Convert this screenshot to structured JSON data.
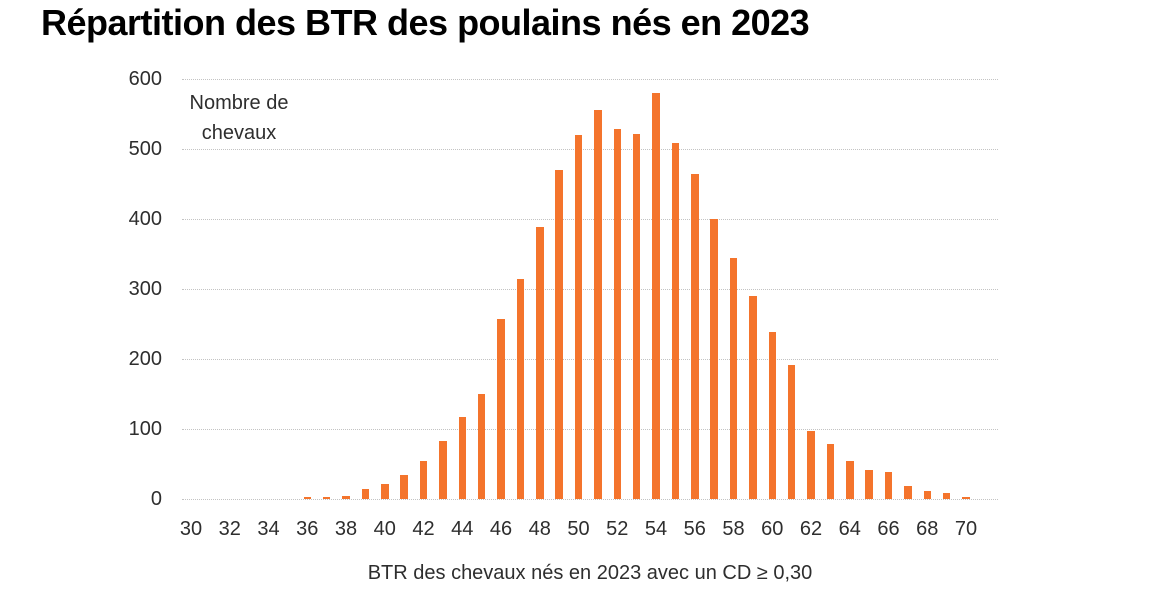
{
  "title": "Répartition des BTR des poulains nés en 2023",
  "annotation": {
    "line1": "Nombre de",
    "line2": "chevaux"
  },
  "chart_data": {
    "type": "bar",
    "title": "Répartition des BTR des poulains nés en 2023",
    "xlabel": "BTR des chevaux nés en 2023 avec un CD ≥ 0,30",
    "ylabel": "Nombre de chevaux",
    "legend": "none",
    "grid": "horizontal-dotted",
    "ylim": [
      0,
      600
    ],
    "y_ticks": [
      0,
      100,
      200,
      300,
      400,
      500,
      600
    ],
    "x_ticks": [
      30,
      32,
      34,
      36,
      38,
      40,
      42,
      44,
      46,
      48,
      50,
      52,
      54,
      56,
      58,
      60,
      62,
      64,
      66,
      68,
      70
    ],
    "x_axis_range": [
      29.5,
      71.6
    ],
    "x": [
      36,
      37,
      38,
      39,
      40,
      41,
      42,
      43,
      44,
      45,
      46,
      47,
      48,
      49,
      50,
      51,
      52,
      53,
      54,
      55,
      56,
      57,
      58,
      59,
      60,
      61,
      62,
      63,
      64,
      65,
      66,
      67,
      68,
      69,
      70
    ],
    "values": [
      3,
      3,
      5,
      14,
      21,
      34,
      55,
      83,
      117,
      150,
      257,
      315,
      388,
      470,
      520,
      556,
      529,
      522,
      580,
      509,
      464,
      400,
      345,
      290,
      238,
      191,
      97,
      79,
      54,
      42,
      38,
      18,
      11,
      8,
      3
    ],
    "bar_color": "#F4742C",
    "gridline_color": "#C3C3C3",
    "text_color": "#2E2E2E",
    "title_color": "#000000"
  }
}
